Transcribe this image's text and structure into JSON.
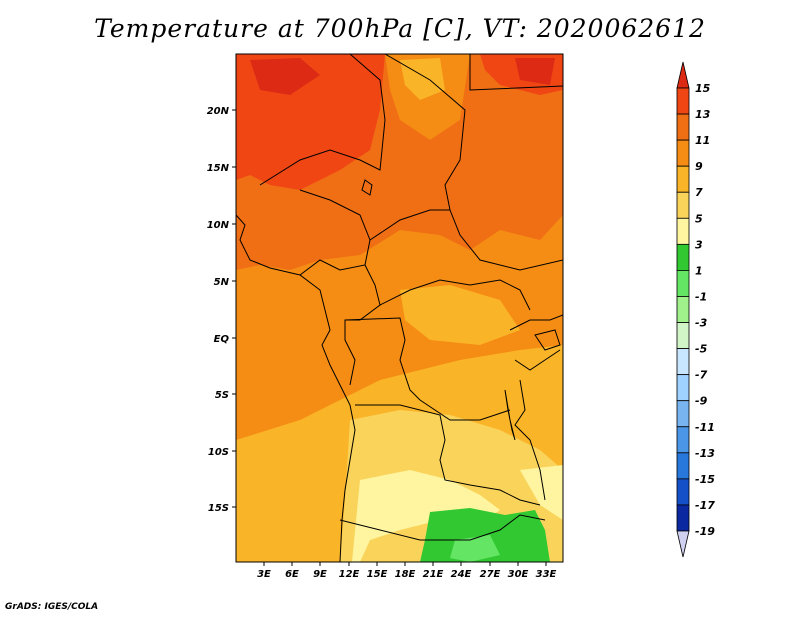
{
  "title": "Temperature at 700hPa [C], VT: 2020062612",
  "credit": "GrADS: IGES/COLA",
  "lat_labels": [
    "20N",
    "15N",
    "10N",
    "5N",
    "EQ",
    "5S",
    "10S",
    "15S"
  ],
  "lon_labels": [
    "3E",
    "6E",
    "9E",
    "12E",
    "15E",
    "18E",
    "21E",
    "24E",
    "27E",
    "30E",
    "33E"
  ],
  "colorbar": {
    "labels": [
      "15",
      "13",
      "11",
      "9",
      "7",
      "5",
      "3",
      "1",
      "-1",
      "-3",
      "-5",
      "-7",
      "-9",
      "-11",
      "-13",
      "-15",
      "-17",
      "-19"
    ],
    "colors": [
      "#dc2a14",
      "#f04614",
      "#f06e14",
      "#f58c14",
      "#fab428",
      "#fad45a",
      "#fff5a0",
      "#32c832",
      "#64e664",
      "#a0f08c",
      "#d2f5c8",
      "#c8e6ff",
      "#a0d2ff",
      "#78b4f0",
      "#4b96e6",
      "#2878dc",
      "#1450c8",
      "#0a28a0",
      "#000a64",
      "#d0d0f0"
    ]
  },
  "legend_colors": {
    "warmest": "#dc2a14",
    "coolest_region": "#32c832"
  }
}
